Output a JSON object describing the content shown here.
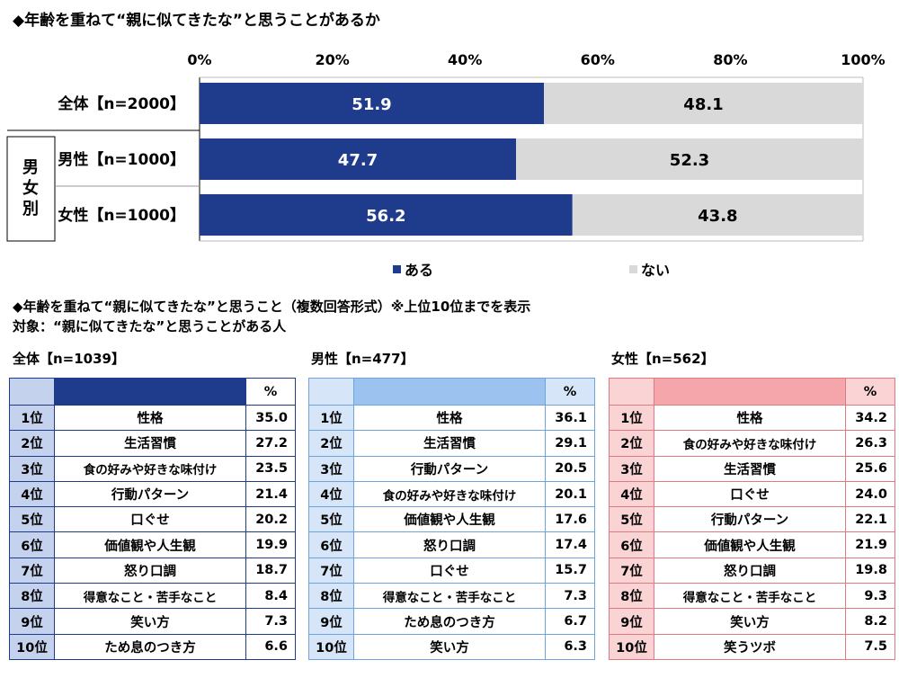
{
  "section1": {
    "title": "◆年齢を重ねて“親に似てきたな”と思うことがあるか",
    "group_label": "男女別"
  },
  "chart_data": {
    "type": "bar",
    "orientation": "horizontal",
    "stacked": true,
    "title": "◆年齢を重ねて“親に似てきたな”と思うことがあるか",
    "x_ticks": [
      "0%",
      "20%",
      "40%",
      "60%",
      "80%",
      "100%"
    ],
    "xlim": [
      0,
      100
    ],
    "categories": [
      "全体【n=2000】",
      "男性【n=1000】",
      "女性【n=1000】"
    ],
    "series": [
      {
        "name": "ある",
        "color": "#1f3b8c",
        "values": [
          51.9,
          47.7,
          56.2
        ]
      },
      {
        "name": "ない",
        "color": "#d9d9d9",
        "values": [
          48.1,
          52.3,
          43.8
        ]
      }
    ],
    "legend_position": "bottom"
  },
  "section2": {
    "title": "◆年齢を重ねて“親に似てきたな”と思うこと（複数回答形式）※上位10位までを表示",
    "target": "対象：“親に似てきたな”と思うことがある人",
    "percent_header": "%"
  },
  "rankings": [
    {
      "label": "全体【n=1039】",
      "header_color": "#1f3b8c",
      "rank_color": "#c5d2ee",
      "border_color": "#1f3b8c",
      "header_text_color": "#ffffff",
      "rows": [
        {
          "rank": "1位",
          "item": "性格",
          "value": "35.0"
        },
        {
          "rank": "2位",
          "item": "生活習慣",
          "value": "27.2"
        },
        {
          "rank": "3位",
          "item": "食の好みや好きな味付け",
          "value": "23.5"
        },
        {
          "rank": "4位",
          "item": "行動パターン",
          "value": "21.4"
        },
        {
          "rank": "5位",
          "item": "口ぐせ",
          "value": "20.2"
        },
        {
          "rank": "6位",
          "item": "価値観や人生観",
          "value": "19.9"
        },
        {
          "rank": "7位",
          "item": "怒り口調",
          "value": "18.7"
        },
        {
          "rank": "8位",
          "item": "得意なこと・苦手なこと",
          "value": "8.4"
        },
        {
          "rank": "9位",
          "item": "笑い方",
          "value": "7.3"
        },
        {
          "rank": "10位",
          "item": "ため息のつき方",
          "value": "6.6"
        }
      ]
    },
    {
      "label": "男性【n=477】",
      "header_color": "#9cc3f0",
      "rank_color": "#d6e6f8",
      "border_color": "#6fa3dc",
      "header_text_color": "#000000",
      "rows": [
        {
          "rank": "1位",
          "item": "性格",
          "value": "36.1"
        },
        {
          "rank": "2位",
          "item": "生活習慣",
          "value": "29.1"
        },
        {
          "rank": "3位",
          "item": "行動パターン",
          "value": "20.5"
        },
        {
          "rank": "4位",
          "item": "食の好みや好きな味付け",
          "value": "20.1"
        },
        {
          "rank": "5位",
          "item": "価値観や人生観",
          "value": "17.6"
        },
        {
          "rank": "6位",
          "item": "怒り口調",
          "value": "17.4"
        },
        {
          "rank": "7位",
          "item": "口ぐせ",
          "value": "15.7"
        },
        {
          "rank": "8位",
          "item": "得意なこと・苦手なこと",
          "value": "7.3"
        },
        {
          "rank": "9位",
          "item": "ため息のつき方",
          "value": "6.7"
        },
        {
          "rank": "10位",
          "item": "笑い方",
          "value": "6.3"
        }
      ]
    },
    {
      "label": "女性【n=562】",
      "header_color": "#f4a6aa",
      "rank_color": "#fad3d5",
      "border_color": "#e07a80",
      "header_text_color": "#000000",
      "rows": [
        {
          "rank": "1位",
          "item": "性格",
          "value": "34.2"
        },
        {
          "rank": "2位",
          "item": "食の好みや好きな味付け",
          "value": "26.3"
        },
        {
          "rank": "3位",
          "item": "生活習慣",
          "value": "25.6"
        },
        {
          "rank": "4位",
          "item": "口ぐせ",
          "value": "24.0"
        },
        {
          "rank": "5位",
          "item": "行動パターン",
          "value": "22.1"
        },
        {
          "rank": "6位",
          "item": "価値観や人生観",
          "value": "21.9"
        },
        {
          "rank": "7位",
          "item": "怒り口調",
          "value": "19.8"
        },
        {
          "rank": "8位",
          "item": "得意なこと・苦手なこと",
          "value": "9.3"
        },
        {
          "rank": "9位",
          "item": "笑い方",
          "value": "8.2"
        },
        {
          "rank": "10位",
          "item": "笑うツボ",
          "value": "7.5"
        }
      ]
    }
  ]
}
